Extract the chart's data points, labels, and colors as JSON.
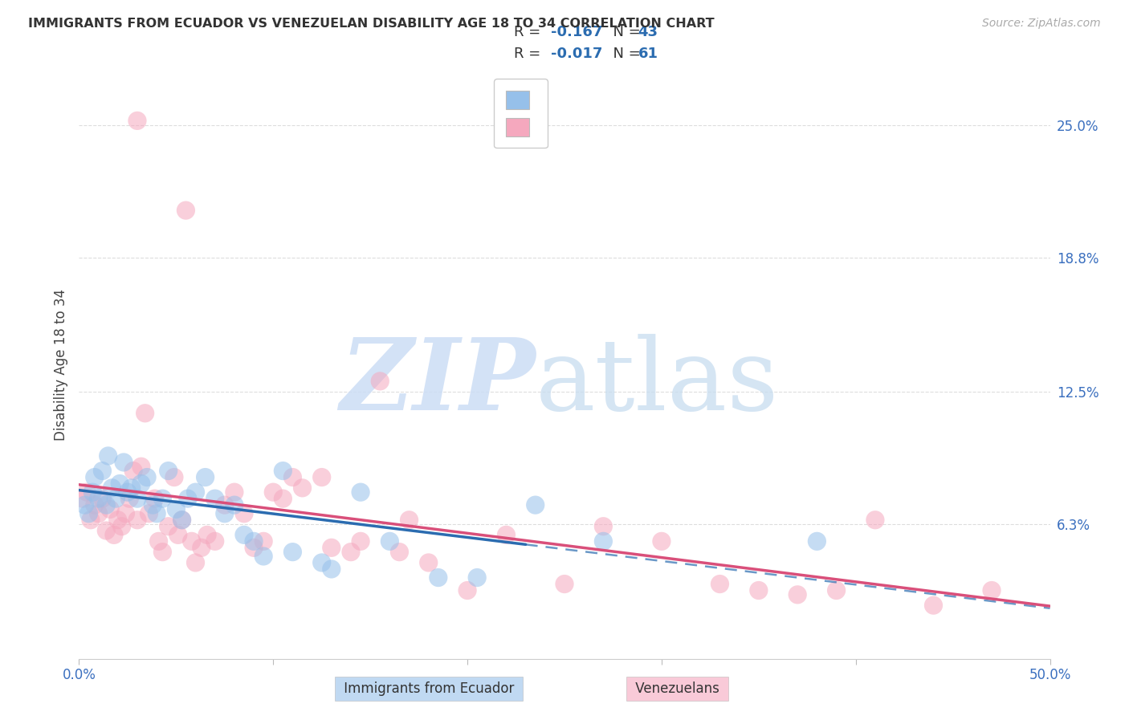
{
  "title": "IMMIGRANTS FROM ECUADOR VS VENEZUELAN DISABILITY AGE 18 TO 34 CORRELATION CHART",
  "source": "Source: ZipAtlas.com",
  "ylabel": "Disability Age 18 to 34",
  "ytick_values": [
    25.0,
    18.8,
    12.5,
    6.3
  ],
  "xlim": [
    0.0,
    50.0
  ],
  "ylim": [
    0.0,
    27.5
  ],
  "color_ecuador": "#96c0ea",
  "color_venezuela": "#f5a8be",
  "trendline_ecuador_color": "#2b6cb0",
  "trendline_venezuela_color": "#d94f7a",
  "r_value_color": "#2b6cb0",
  "n_value_color": "#2b6cb0",
  "ecuador_R": "-0.167",
  "ecuador_N": "43",
  "venezuela_R": "-0.017",
  "venezuela_N": "61",
  "legend_label_ecuador": "Immigrants from Ecuador",
  "legend_label_venezuela": "Venezuelans",
  "ecuador_points": [
    [
      0.3,
      7.2
    ],
    [
      0.5,
      6.8
    ],
    [
      0.7,
      7.8
    ],
    [
      0.8,
      8.5
    ],
    [
      1.0,
      7.5
    ],
    [
      1.2,
      8.8
    ],
    [
      1.4,
      7.2
    ],
    [
      1.5,
      9.5
    ],
    [
      1.7,
      8.0
    ],
    [
      1.9,
      7.5
    ],
    [
      2.1,
      8.2
    ],
    [
      2.3,
      9.2
    ],
    [
      2.5,
      7.8
    ],
    [
      2.7,
      8.0
    ],
    [
      3.0,
      7.5
    ],
    [
      3.2,
      8.2
    ],
    [
      3.5,
      8.5
    ],
    [
      3.8,
      7.2
    ],
    [
      4.0,
      6.8
    ],
    [
      4.3,
      7.5
    ],
    [
      4.6,
      8.8
    ],
    [
      5.0,
      7.0
    ],
    [
      5.3,
      6.5
    ],
    [
      5.6,
      7.5
    ],
    [
      6.0,
      7.8
    ],
    [
      6.5,
      8.5
    ],
    [
      7.0,
      7.5
    ],
    [
      7.5,
      6.8
    ],
    [
      8.0,
      7.2
    ],
    [
      8.5,
      5.8
    ],
    [
      9.0,
      5.5
    ],
    [
      9.5,
      4.8
    ],
    [
      10.5,
      8.8
    ],
    [
      11.0,
      5.0
    ],
    [
      12.5,
      4.5
    ],
    [
      13.0,
      4.2
    ],
    [
      14.5,
      7.8
    ],
    [
      16.0,
      5.5
    ],
    [
      18.5,
      3.8
    ],
    [
      20.5,
      3.8
    ],
    [
      23.5,
      7.2
    ],
    [
      27.0,
      5.5
    ],
    [
      38.0,
      5.5
    ]
  ],
  "venezuela_points": [
    [
      0.2,
      7.5
    ],
    [
      0.4,
      7.8
    ],
    [
      0.6,
      6.5
    ],
    [
      0.8,
      7.2
    ],
    [
      1.0,
      6.8
    ],
    [
      1.2,
      7.5
    ],
    [
      1.4,
      6.0
    ],
    [
      1.6,
      7.0
    ],
    [
      1.8,
      5.8
    ],
    [
      2.0,
      6.5
    ],
    [
      2.2,
      6.2
    ],
    [
      2.4,
      6.8
    ],
    [
      2.6,
      7.5
    ],
    [
      2.8,
      8.8
    ],
    [
      3.0,
      6.5
    ],
    [
      3.0,
      25.2
    ],
    [
      3.2,
      9.0
    ],
    [
      3.4,
      11.5
    ],
    [
      3.6,
      6.8
    ],
    [
      3.9,
      7.5
    ],
    [
      4.1,
      5.5
    ],
    [
      4.3,
      5.0
    ],
    [
      4.6,
      6.2
    ],
    [
      4.9,
      8.5
    ],
    [
      5.1,
      5.8
    ],
    [
      5.3,
      6.5
    ],
    [
      5.5,
      21.0
    ],
    [
      5.8,
      5.5
    ],
    [
      6.0,
      4.5
    ],
    [
      6.3,
      5.2
    ],
    [
      6.6,
      5.8
    ],
    [
      7.0,
      5.5
    ],
    [
      7.5,
      7.2
    ],
    [
      8.0,
      7.8
    ],
    [
      8.5,
      6.8
    ],
    [
      9.0,
      5.2
    ],
    [
      9.5,
      5.5
    ],
    [
      10.0,
      7.8
    ],
    [
      10.5,
      7.5
    ],
    [
      11.0,
      8.5
    ],
    [
      11.5,
      8.0
    ],
    [
      12.5,
      8.5
    ],
    [
      13.0,
      5.2
    ],
    [
      14.0,
      5.0
    ],
    [
      14.5,
      5.5
    ],
    [
      15.5,
      13.0
    ],
    [
      16.5,
      5.0
    ],
    [
      17.0,
      6.5
    ],
    [
      18.0,
      4.5
    ],
    [
      20.0,
      3.2
    ],
    [
      22.0,
      5.8
    ],
    [
      25.0,
      3.5
    ],
    [
      27.0,
      6.2
    ],
    [
      30.0,
      5.5
    ],
    [
      33.0,
      3.5
    ],
    [
      35.0,
      3.2
    ],
    [
      37.0,
      3.0
    ],
    [
      39.0,
      3.2
    ],
    [
      41.0,
      6.5
    ],
    [
      44.0,
      2.5
    ],
    [
      47.0,
      3.2
    ]
  ],
  "ecuador_solid_end": 23.0,
  "background_color": "#ffffff",
  "grid_color": "#dddddd",
  "watermark_zip_color": "#ccddf5",
  "watermark_atlas_color": "#c8ddf0"
}
